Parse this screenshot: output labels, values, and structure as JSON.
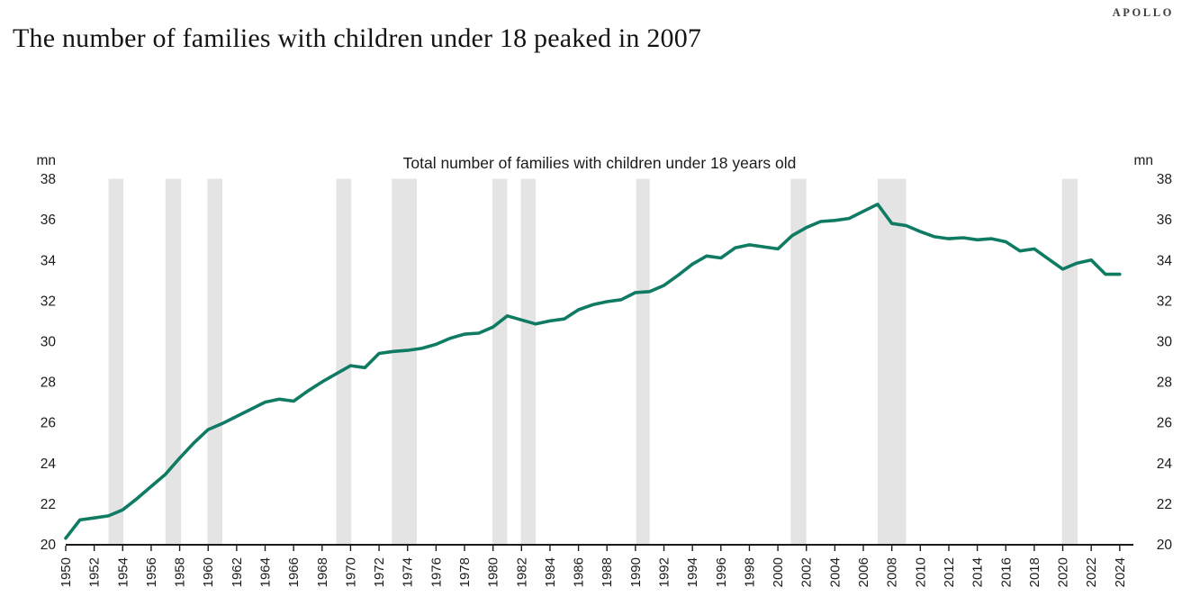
{
  "header": {
    "title": "The number of families with children under 18 peaked in 2007",
    "logo": "APOLLO"
  },
  "chart": {
    "subtitle": "Total number of families with children under 18 years old",
    "unit_left": "mn",
    "unit_right": "mn"
  },
  "chart_data": {
    "type": "line",
    "title": "Total number of families with children under 18 years old",
    "unit": "mn",
    "ylim": [
      20,
      38
    ],
    "yticks": [
      20,
      22,
      24,
      26,
      28,
      30,
      32,
      34,
      36,
      38
    ],
    "xticks": [
      1950,
      1952,
      1954,
      1956,
      1958,
      1960,
      1962,
      1964,
      1966,
      1968,
      1970,
      1972,
      1974,
      1976,
      1978,
      1980,
      1982,
      1984,
      1986,
      1988,
      1990,
      1992,
      1994,
      1996,
      1998,
      2000,
      2002,
      2004,
      2006,
      2008,
      2010,
      2012,
      2014,
      2016,
      2018,
      2020,
      2022,
      2024
    ],
    "x": [
      1950,
      1951,
      1952,
      1953,
      1954,
      1955,
      1956,
      1957,
      1958,
      1959,
      1960,
      1961,
      1962,
      1963,
      1964,
      1965,
      1966,
      1967,
      1968,
      1969,
      1970,
      1971,
      1972,
      1973,
      1974,
      1975,
      1976,
      1977,
      1978,
      1979,
      1980,
      1981,
      1982,
      1983,
      1984,
      1985,
      1986,
      1987,
      1988,
      1989,
      1990,
      1991,
      1992,
      1993,
      1994,
      1995,
      1996,
      1997,
      1998,
      1999,
      2000,
      2001,
      2002,
      2003,
      2004,
      2005,
      2006,
      2007,
      2008,
      2009,
      2010,
      2011,
      2012,
      2013,
      2014,
      2015,
      2016,
      2017,
      2018,
      2019,
      2020,
      2021,
      2022,
      2023,
      2024
    ],
    "series": [
      {
        "name": "Total number of families with children under 18 years old",
        "values": [
          20.3,
          21.2,
          21.3,
          21.4,
          21.7,
          22.25,
          22.85,
          23.45,
          24.25,
          25.0,
          25.65,
          25.95,
          26.3,
          26.65,
          27.0,
          27.15,
          27.05,
          27.55,
          28.0,
          28.4,
          28.8,
          28.7,
          29.4,
          29.5,
          29.55,
          29.65,
          29.85,
          30.15,
          30.35,
          30.4,
          30.7,
          31.25,
          31.05,
          30.85,
          31.0,
          31.1,
          31.55,
          31.8,
          31.95,
          32.05,
          32.4,
          32.45,
          32.75,
          33.25,
          33.8,
          34.2,
          34.1,
          34.6,
          34.75,
          34.65,
          34.55,
          35.2,
          35.6,
          35.9,
          35.95,
          36.05,
          36.4,
          36.75,
          35.8,
          35.7,
          35.4,
          35.15,
          35.05,
          35.1,
          35.0,
          35.05,
          34.9,
          34.45,
          34.55,
          34.05,
          33.55,
          33.85,
          34.0,
          33.3,
          33.3
        ]
      }
    ],
    "recession_bands": [
      [
        1953.0,
        1954.05
      ],
      [
        1957.0,
        1958.1
      ],
      [
        1959.95,
        1961.0
      ],
      [
        1969.0,
        1970.05
      ],
      [
        1972.9,
        1974.65
      ],
      [
        1979.95,
        1981.0
      ],
      [
        1981.95,
        1983.0
      ],
      [
        1990.05,
        1991.0
      ],
      [
        2000.9,
        2002.0
      ],
      [
        2007.0,
        2009.0
      ],
      [
        2019.95,
        2021.05
      ]
    ],
    "line_color": "#0f7b62",
    "band_color": "#e4e4e4",
    "axis_color": "#1b1b1b",
    "grid": "off",
    "legend": "none"
  }
}
